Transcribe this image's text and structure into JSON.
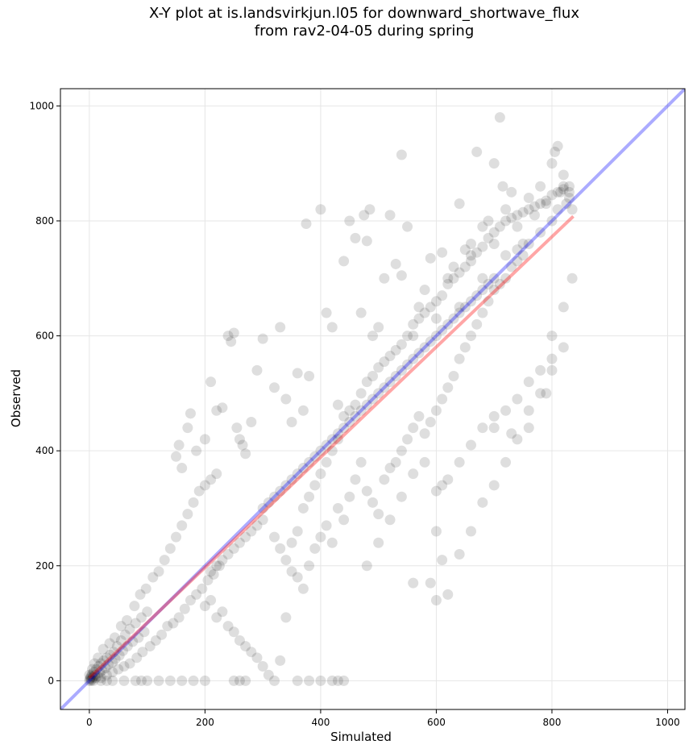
{
  "title_line1": "X-Y plot at is.landsvirkjun.l05 for downward_shortwave_flux",
  "title_line2": "from rav2-04-05 during spring",
  "chart_data": {
    "type": "scatter",
    "title": "X-Y plot at is.landsvirkjun.l05 for downward_shortwave_flux from rav2-04-05 during spring",
    "xlabel": "Simulated",
    "ylabel": "Observed",
    "xlim": [
      -50,
      1030
    ],
    "ylim": [
      -50,
      1030
    ],
    "xticks": [
      0,
      200,
      400,
      600,
      800,
      1000
    ],
    "yticks": [
      0,
      200,
      400,
      600,
      800,
      1000
    ],
    "grid": true,
    "point_color": "#000000",
    "point_alpha": 0.13,
    "identity_line": {
      "x": [
        -50,
        1030
      ],
      "y": [
        -50,
        1030
      ],
      "color": "#0000ff"
    },
    "fit_line": {
      "x": [
        0,
        837
      ],
      "y": [
        5,
        808
      ],
      "color": "#ff0000"
    },
    "points": [
      [
        0,
        0
      ],
      [
        1,
        3
      ],
      [
        2,
        5
      ],
      [
        3,
        8
      ],
      [
        4,
        2
      ],
      [
        5,
        12
      ],
      [
        6,
        6
      ],
      [
        8,
        15
      ],
      [
        10,
        10
      ],
      [
        12,
        20
      ],
      [
        14,
        8
      ],
      [
        16,
        25
      ],
      [
        18,
        14
      ],
      [
        20,
        30
      ],
      [
        22,
        18
      ],
      [
        25,
        35
      ],
      [
        28,
        22
      ],
      [
        30,
        40
      ],
      [
        33,
        28
      ],
      [
        36,
        45
      ],
      [
        40,
        32
      ],
      [
        42,
        50
      ],
      [
        45,
        38
      ],
      [
        48,
        60
      ],
      [
        52,
        44
      ],
      [
        55,
        70
      ],
      [
        58,
        52
      ],
      [
        62,
        80
      ],
      [
        66,
        60
      ],
      [
        70,
        90
      ],
      [
        75,
        68
      ],
      [
        80,
        100
      ],
      [
        85,
        75
      ],
      [
        90,
        110
      ],
      [
        95,
        85
      ],
      [
        100,
        120
      ],
      [
        0,
        10
      ],
      [
        3,
        0
      ],
      [
        5,
        20
      ],
      [
        7,
        0
      ],
      [
        9,
        30
      ],
      [
        11,
        5
      ],
      [
        15,
        40
      ],
      [
        20,
        5
      ],
      [
        24,
        55
      ],
      [
        30,
        10
      ],
      [
        35,
        65
      ],
      [
        40,
        15
      ],
      [
        44,
        75
      ],
      [
        50,
        20
      ],
      [
        55,
        95
      ],
      [
        60,
        25
      ],
      [
        65,
        105
      ],
      [
        70,
        30
      ],
      [
        78,
        130
      ],
      [
        82,
        40
      ],
      [
        88,
        150
      ],
      [
        92,
        50
      ],
      [
        98,
        160
      ],
      [
        105,
        60
      ],
      [
        110,
        180
      ],
      [
        115,
        70
      ],
      [
        120,
        190
      ],
      [
        125,
        80
      ],
      [
        130,
        210
      ],
      [
        135,
        95
      ],
      [
        140,
        230
      ],
      [
        145,
        100
      ],
      [
        150,
        250
      ],
      [
        155,
        110
      ],
      [
        160,
        270
      ],
      [
        165,
        125
      ],
      [
        170,
        290
      ],
      [
        175,
        140
      ],
      [
        180,
        310
      ],
      [
        185,
        150
      ],
      [
        190,
        330
      ],
      [
        195,
        160
      ],
      [
        200,
        340
      ],
      [
        205,
        175
      ],
      [
        210,
        350
      ],
      [
        215,
        185
      ],
      [
        220,
        360
      ],
      [
        225,
        200
      ],
      [
        150,
        390
      ],
      [
        155,
        410
      ],
      [
        160,
        370
      ],
      [
        170,
        440
      ],
      [
        175,
        465
      ],
      [
        185,
        400
      ],
      [
        200,
        420
      ],
      [
        210,
        520
      ],
      [
        220,
        470
      ],
      [
        230,
        475
      ],
      [
        240,
        600
      ],
      [
        245,
        590
      ],
      [
        250,
        605
      ],
      [
        255,
        440
      ],
      [
        260,
        420
      ],
      [
        265,
        410
      ],
      [
        270,
        395
      ],
      [
        280,
        450
      ],
      [
        290,
        540
      ],
      [
        300,
        595
      ],
      [
        320,
        510
      ],
      [
        330,
        615
      ],
      [
        340,
        490
      ],
      [
        350,
        450
      ],
      [
        360,
        535
      ],
      [
        370,
        470
      ],
      [
        375,
        795
      ],
      [
        380,
        530
      ],
      [
        400,
        820
      ],
      [
        410,
        640
      ],
      [
        420,
        615
      ],
      [
        430,
        480
      ],
      [
        440,
        730
      ],
      [
        450,
        800
      ],
      [
        460,
        770
      ],
      [
        470,
        640
      ],
      [
        475,
        810
      ],
      [
        480,
        765
      ],
      [
        485,
        820
      ],
      [
        490,
        600
      ],
      [
        500,
        615
      ],
      [
        510,
        700
      ],
      [
        520,
        810
      ],
      [
        530,
        725
      ],
      [
        540,
        705
      ],
      [
        550,
        790
      ],
      [
        560,
        600
      ],
      [
        570,
        650
      ],
      [
        580,
        680
      ],
      [
        590,
        735
      ],
      [
        600,
        630
      ],
      [
        610,
        745
      ],
      [
        620,
        700
      ],
      [
        630,
        720
      ],
      [
        640,
        650
      ],
      [
        650,
        750
      ],
      [
        660,
        740
      ],
      [
        670,
        920
      ],
      [
        680,
        700
      ],
      [
        690,
        800
      ],
      [
        700,
        900
      ],
      [
        710,
        980
      ],
      [
        715,
        860
      ],
      [
        720,
        820
      ],
      [
        730,
        850
      ],
      [
        740,
        790
      ],
      [
        750,
        760
      ],
      [
        760,
        840
      ],
      [
        770,
        810
      ],
      [
        780,
        860
      ],
      [
        790,
        830
      ],
      [
        800,
        900
      ],
      [
        805,
        920
      ],
      [
        810,
        930
      ],
      [
        815,
        850
      ],
      [
        820,
        880
      ],
      [
        825,
        830
      ],
      [
        830,
        850
      ],
      [
        835,
        820
      ],
      [
        540,
        915
      ],
      [
        640,
        830
      ],
      [
        660,
        760
      ],
      [
        680,
        790
      ],
      [
        700,
        760
      ],
      [
        720,
        740
      ],
      [
        740,
        750
      ],
      [
        760,
        760
      ],
      [
        780,
        780
      ],
      [
        800,
        800
      ],
      [
        810,
        820
      ],
      [
        820,
        860
      ],
      [
        830,
        840
      ],
      [
        200,
        130
      ],
      [
        210,
        140
      ],
      [
        220,
        110
      ],
      [
        230,
        120
      ],
      [
        240,
        95
      ],
      [
        250,
        85
      ],
      [
        260,
        70
      ],
      [
        270,
        60
      ],
      [
        280,
        50
      ],
      [
        290,
        40
      ],
      [
        300,
        25
      ],
      [
        310,
        10
      ],
      [
        320,
        0
      ],
      [
        330,
        35
      ],
      [
        340,
        110
      ],
      [
        350,
        190
      ],
      [
        360,
        180
      ],
      [
        370,
        160
      ],
      [
        380,
        200
      ],
      [
        390,
        230
      ],
      [
        400,
        250
      ],
      [
        410,
        270
      ],
      [
        420,
        240
      ],
      [
        430,
        300
      ],
      [
        440,
        280
      ],
      [
        450,
        320
      ],
      [
        460,
        350
      ],
      [
        470,
        380
      ],
      [
        480,
        330
      ],
      [
        490,
        310
      ],
      [
        500,
        290
      ],
      [
        510,
        350
      ],
      [
        520,
        370
      ],
      [
        530,
        380
      ],
      [
        540,
        400
      ],
      [
        550,
        420
      ],
      [
        560,
        440
      ],
      [
        570,
        460
      ],
      [
        580,
        430
      ],
      [
        590,
        450
      ],
      [
        600,
        470
      ],
      [
        610,
        490
      ],
      [
        620,
        510
      ],
      [
        630,
        530
      ],
      [
        640,
        560
      ],
      [
        650,
        580
      ],
      [
        660,
        600
      ],
      [
        670,
        620
      ],
      [
        680,
        640
      ],
      [
        690,
        660
      ],
      [
        700,
        680
      ],
      [
        710,
        690
      ],
      [
        720,
        700
      ],
      [
        730,
        720
      ],
      [
        740,
        730
      ],
      [
        750,
        740
      ],
      [
        420,
        0
      ],
      [
        430,
        0
      ],
      [
        440,
        0
      ],
      [
        400,
        0
      ],
      [
        380,
        0
      ],
      [
        360,
        0
      ],
      [
        250,
        0
      ],
      [
        260,
        0
      ],
      [
        270,
        0
      ],
      [
        200,
        0
      ],
      [
        180,
        0
      ],
      [
        160,
        0
      ],
      [
        140,
        0
      ],
      [
        120,
        0
      ],
      [
        100,
        0
      ],
      [
        90,
        0
      ],
      [
        80,
        0
      ],
      [
        60,
        0
      ],
      [
        40,
        0
      ],
      [
        30,
        0
      ],
      [
        20,
        0
      ],
      [
        480,
        200
      ],
      [
        500,
        240
      ],
      [
        520,
        280
      ],
      [
        540,
        320
      ],
      [
        560,
        360
      ],
      [
        580,
        380
      ],
      [
        600,
        260
      ],
      [
        610,
        210
      ],
      [
        620,
        150
      ],
      [
        600,
        140
      ],
      [
        590,
        170
      ],
      [
        640,
        220
      ],
      [
        660,
        260
      ],
      [
        680,
        310
      ],
      [
        700,
        340
      ],
      [
        720,
        380
      ],
      [
        740,
        420
      ],
      [
        760,
        470
      ],
      [
        780,
        500
      ],
      [
        800,
        540
      ],
      [
        820,
        580
      ],
      [
        600,
        330
      ],
      [
        620,
        350
      ],
      [
        640,
        380
      ],
      [
        660,
        410
      ],
      [
        680,
        440
      ],
      [
        700,
        460
      ],
      [
        720,
        470
      ],
      [
        740,
        490
      ],
      [
        760,
        520
      ],
      [
        780,
        540
      ],
      [
        800,
        560
      ],
      [
        300,
        300
      ],
      [
        310,
        310
      ],
      [
        320,
        320
      ],
      [
        330,
        330
      ],
      [
        340,
        340
      ],
      [
        350,
        350
      ],
      [
        360,
        360
      ],
      [
        370,
        370
      ],
      [
        380,
        380
      ],
      [
        390,
        390
      ],
      [
        400,
        400
      ],
      [
        410,
        410
      ],
      [
        420,
        420
      ],
      [
        430,
        430
      ],
      [
        440,
        440
      ],
      [
        450,
        450
      ],
      [
        460,
        460
      ],
      [
        470,
        470
      ],
      [
        480,
        480
      ],
      [
        490,
        490
      ],
      [
        500,
        500
      ],
      [
        510,
        510
      ],
      [
        520,
        520
      ],
      [
        530,
        530
      ],
      [
        540,
        540
      ],
      [
        550,
        550
      ],
      [
        560,
        560
      ],
      [
        570,
        570
      ],
      [
        580,
        580
      ],
      [
        590,
        590
      ],
      [
        600,
        600
      ],
      [
        610,
        610
      ],
      [
        620,
        620
      ],
      [
        630,
        630
      ],
      [
        640,
        640
      ],
      [
        650,
        650
      ],
      [
        660,
        660
      ],
      [
        670,
        670
      ],
      [
        680,
        680
      ],
      [
        690,
        690
      ],
      [
        700,
        700
      ],
      [
        260,
        240
      ],
      [
        270,
        250
      ],
      [
        280,
        260
      ],
      [
        290,
        270
      ],
      [
        300,
        280
      ],
      [
        240,
        220
      ],
      [
        230,
        210
      ],
      [
        220,
        200
      ],
      [
        210,
        190
      ],
      [
        250,
        230
      ],
      [
        320,
        250
      ],
      [
        330,
        230
      ],
      [
        340,
        210
      ],
      [
        350,
        240
      ],
      [
        360,
        260
      ],
      [
        370,
        300
      ],
      [
        380,
        320
      ],
      [
        390,
        340
      ],
      [
        400,
        360
      ],
      [
        410,
        380
      ],
      [
        420,
        400
      ],
      [
        430,
        420
      ],
      [
        440,
        460
      ],
      [
        450,
        470
      ],
      [
        460,
        480
      ],
      [
        470,
        500
      ],
      [
        480,
        520
      ],
      [
        490,
        530
      ],
      [
        500,
        545
      ],
      [
        510,
        555
      ],
      [
        520,
        565
      ],
      [
        530,
        575
      ],
      [
        540,
        585
      ],
      [
        550,
        600
      ],
      [
        560,
        620
      ],
      [
        570,
        630
      ],
      [
        580,
        640
      ],
      [
        590,
        650
      ],
      [
        600,
        660
      ],
      [
        610,
        670
      ],
      [
        620,
        690
      ],
      [
        630,
        700
      ],
      [
        640,
        710
      ],
      [
        650,
        720
      ],
      [
        660,
        730
      ],
      [
        670,
        745
      ],
      [
        680,
        755
      ],
      [
        690,
        770
      ],
      [
        700,
        780
      ],
      [
        710,
        790
      ],
      [
        720,
        800
      ],
      [
        730,
        805
      ],
      [
        740,
        810
      ],
      [
        750,
        815
      ],
      [
        760,
        820
      ],
      [
        770,
        825
      ],
      [
        780,
        830
      ],
      [
        790,
        835
      ],
      [
        800,
        845
      ],
      [
        810,
        850
      ],
      [
        820,
        855
      ],
      [
        830,
        860
      ],
      [
        560,
        170
      ],
      [
        610,
        340
      ],
      [
        700,
        440
      ],
      [
        730,
        430
      ],
      [
        760,
        440
      ],
      [
        790,
        500
      ],
      [
        800,
        600
      ],
      [
        820,
        650
      ],
      [
        835,
        700
      ]
    ]
  }
}
